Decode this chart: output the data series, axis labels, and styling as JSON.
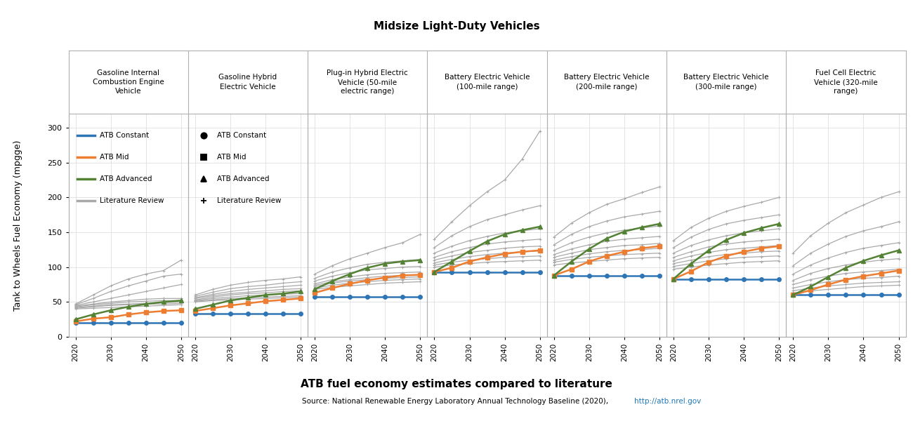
{
  "title": "Midsize Light-Duty Vehicles",
  "subtitle": "ATB fuel economy estimates compared to literature",
  "source": "Source: National Renewable Energy Laboratory Annual Technology Baseline (2020), http://atb.nrel.gov",
  "source_link": "http://atb.nrel.gov",
  "ylabel": "Tank to Wheels Fuel Economy (mpgge)",
  "years": [
    2020,
    2025,
    2030,
    2035,
    2040,
    2045,
    2050
  ],
  "colors": {
    "constant": "#2e75b6",
    "mid": "#ed7d31",
    "advanced": "#548235",
    "literature": "#a9a9a9"
  },
  "panel_titles": [
    "Gasoline Internal\nCombustion Engine\nVehicle",
    "Gasoline Hybrid\nElectric Vehicle",
    "Plug-in Hybrid Electric\nVehicle (50-mile\nelectric range)",
    "Battery Electric Vehicle\n(100-mile range)",
    "Battery Electric Vehicle\n(200-mile range)",
    "Battery Electric Vehicle\n(300-mile range)",
    "Fuel Cell Electric\nVehicle (320-mile\nrange)"
  ],
  "ylim": [
    0,
    320
  ],
  "yticks": [
    0,
    50,
    100,
    150,
    200,
    250,
    300
  ],
  "panels": {
    "ICEV": {
      "constant": [
        20,
        20,
        20,
        20,
        20,
        20,
        20
      ],
      "mid": [
        22,
        26,
        28,
        32,
        35,
        37,
        38
      ],
      "advanced": [
        25,
        32,
        38,
        43,
        47,
        50,
        52
      ],
      "literature_lines": [
        [
          40,
          41,
          42,
          43,
          44,
          45,
          46
        ],
        [
          41,
          43,
          45,
          46,
          47,
          47,
          48
        ],
        [
          42,
          44,
          46,
          47,
          48,
          49,
          50
        ],
        [
          43,
          46,
          48,
          50,
          51,
          52,
          52
        ],
        [
          44,
          47,
          50,
          52,
          54,
          55,
          55
        ],
        [
          45,
          50,
          55,
          60,
          65,
          70,
          75
        ],
        [
          46,
          55,
          65,
          73,
          80,
          87,
          90
        ],
        [
          47,
          60,
          73,
          83,
          90,
          95,
          110
        ]
      ]
    },
    "HEV": {
      "constant": [
        33,
        33,
        33,
        33,
        33,
        33,
        33
      ],
      "mid": [
        37,
        41,
        45,
        48,
        51,
        53,
        55
      ],
      "advanced": [
        40,
        46,
        52,
        56,
        60,
        62,
        65
      ],
      "literature_lines": [
        [
          50,
          52,
          53,
          54,
          55,
          56,
          57
        ],
        [
          51,
          53,
          55,
          56,
          57,
          58,
          59
        ],
        [
          52,
          55,
          57,
          59,
          60,
          61,
          62
        ],
        [
          53,
          57,
          60,
          62,
          63,
          65,
          66
        ],
        [
          55,
          59,
          62,
          64,
          66,
          68,
          69
        ],
        [
          56,
          61,
          65,
          68,
          70,
          72,
          74
        ],
        [
          58,
          64,
          69,
          72,
          74,
          77,
          79
        ],
        [
          60,
          68,
          74,
          78,
          81,
          83,
          86
        ]
      ]
    },
    "PHEV50": {
      "constant": [
        57,
        57,
        57,
        57,
        57,
        57,
        57
      ],
      "mid": [
        63,
        70,
        76,
        81,
        85,
        88,
        89
      ],
      "advanced": [
        68,
        80,
        90,
        99,
        105,
        108,
        110
      ],
      "literature_lines": [
        [
          68,
          71,
          73,
          75,
          77,
          78,
          79
        ],
        [
          70,
          74,
          77,
          79,
          81,
          82,
          83
        ],
        [
          72,
          77,
          80,
          82,
          84,
          85,
          86
        ],
        [
          74,
          79,
          82,
          85,
          87,
          88,
          89
        ],
        [
          76,
          82,
          86,
          89,
          91,
          92,
          93
        ],
        [
          80,
          87,
          92,
          96,
          98,
          100,
          101
        ],
        [
          84,
          93,
          99,
          104,
          107,
          109,
          111
        ],
        [
          90,
          102,
          112,
          120,
          128,
          135,
          147
        ]
      ]
    },
    "BEV100": {
      "constant": [
        93,
        93,
        93,
        93,
        93,
        93,
        93
      ],
      "mid": [
        93,
        99,
        108,
        114,
        119,
        122,
        124
      ],
      "advanced": [
        93,
        108,
        123,
        137,
        147,
        153,
        158
      ],
      "literature_lines": [
        [
          100,
          103,
          105,
          107,
          108,
          109,
          110
        ],
        [
          103,
          107,
          110,
          112,
          114,
          115,
          116
        ],
        [
          106,
          111,
          115,
          118,
          120,
          122,
          123
        ],
        [
          110,
          116,
          121,
          124,
          127,
          129,
          130
        ],
        [
          114,
          122,
          128,
          133,
          136,
          138,
          140
        ],
        [
          120,
          130,
          138,
          144,
          149,
          152,
          155
        ],
        [
          128,
          145,
          158,
          168,
          175,
          182,
          188
        ],
        [
          140,
          165,
          188,
          208,
          225,
          255,
          295
        ]
      ]
    },
    "BEV200": {
      "constant": [
        88,
        88,
        88,
        88,
        88,
        88,
        88
      ],
      "mid": [
        88,
        97,
        108,
        116,
        122,
        127,
        130
      ],
      "advanced": [
        88,
        108,
        126,
        141,
        151,
        157,
        162
      ],
      "literature_lines": [
        [
          103,
          106,
          108,
          110,
          112,
          113,
          114
        ],
        [
          107,
          111,
          114,
          116,
          118,
          119,
          120
        ],
        [
          110,
          115,
          119,
          122,
          124,
          125,
          127
        ],
        [
          114,
          120,
          125,
          128,
          131,
          132,
          134
        ],
        [
          118,
          126,
          132,
          137,
          140,
          142,
          144
        ],
        [
          124,
          135,
          143,
          149,
          153,
          156,
          159
        ],
        [
          132,
          147,
          158,
          166,
          172,
          176,
          180
        ],
        [
          143,
          163,
          178,
          190,
          198,
          207,
          215
        ]
      ]
    },
    "BEV300": {
      "constant": [
        83,
        83,
        83,
        83,
        83,
        83,
        83
      ],
      "mid": [
        83,
        94,
        107,
        116,
        122,
        127,
        130
      ],
      "advanced": [
        83,
        105,
        124,
        139,
        149,
        156,
        162
      ],
      "literature_lines": [
        [
          97,
          100,
          103,
          105,
          107,
          108,
          109
        ],
        [
          101,
          105,
          109,
          112,
          114,
          115,
          116
        ],
        [
          105,
          110,
          115,
          118,
          120,
          122,
          123
        ],
        [
          109,
          116,
          121,
          125,
          127,
          129,
          131
        ],
        [
          114,
          122,
          129,
          133,
          136,
          138,
          140
        ],
        [
          120,
          131,
          139,
          145,
          149,
          152,
          155
        ],
        [
          128,
          143,
          154,
          162,
          167,
          171,
          175
        ],
        [
          138,
          157,
          170,
          180,
          187,
          193,
          200
        ]
      ]
    },
    "FCEV": {
      "constant": [
        60,
        60,
        60,
        60,
        60,
        60,
        60
      ],
      "mid": [
        60,
        67,
        75,
        82,
        87,
        91,
        95
      ],
      "advanced": [
        60,
        72,
        86,
        99,
        109,
        117,
        124
      ],
      "literature_lines": [
        [
          63,
          66,
          68,
          70,
          72,
          73,
          74
        ],
        [
          66,
          70,
          73,
          75,
          77,
          78,
          79
        ],
        [
          70,
          75,
          79,
          82,
          84,
          85,
          87
        ],
        [
          75,
          82,
          87,
          91,
          93,
          95,
          97
        ],
        [
          81,
          91,
          98,
          103,
          107,
          110,
          112
        ],
        [
          90,
          103,
          113,
          121,
          127,
          131,
          135
        ],
        [
          102,
          120,
          133,
          144,
          152,
          158,
          165
        ],
        [
          120,
          145,
          163,
          178,
          189,
          200,
          208
        ]
      ]
    }
  },
  "bg_color": "#ffffff",
  "grid_color": "#d9d9d9",
  "border_color": "#b0b0b0"
}
